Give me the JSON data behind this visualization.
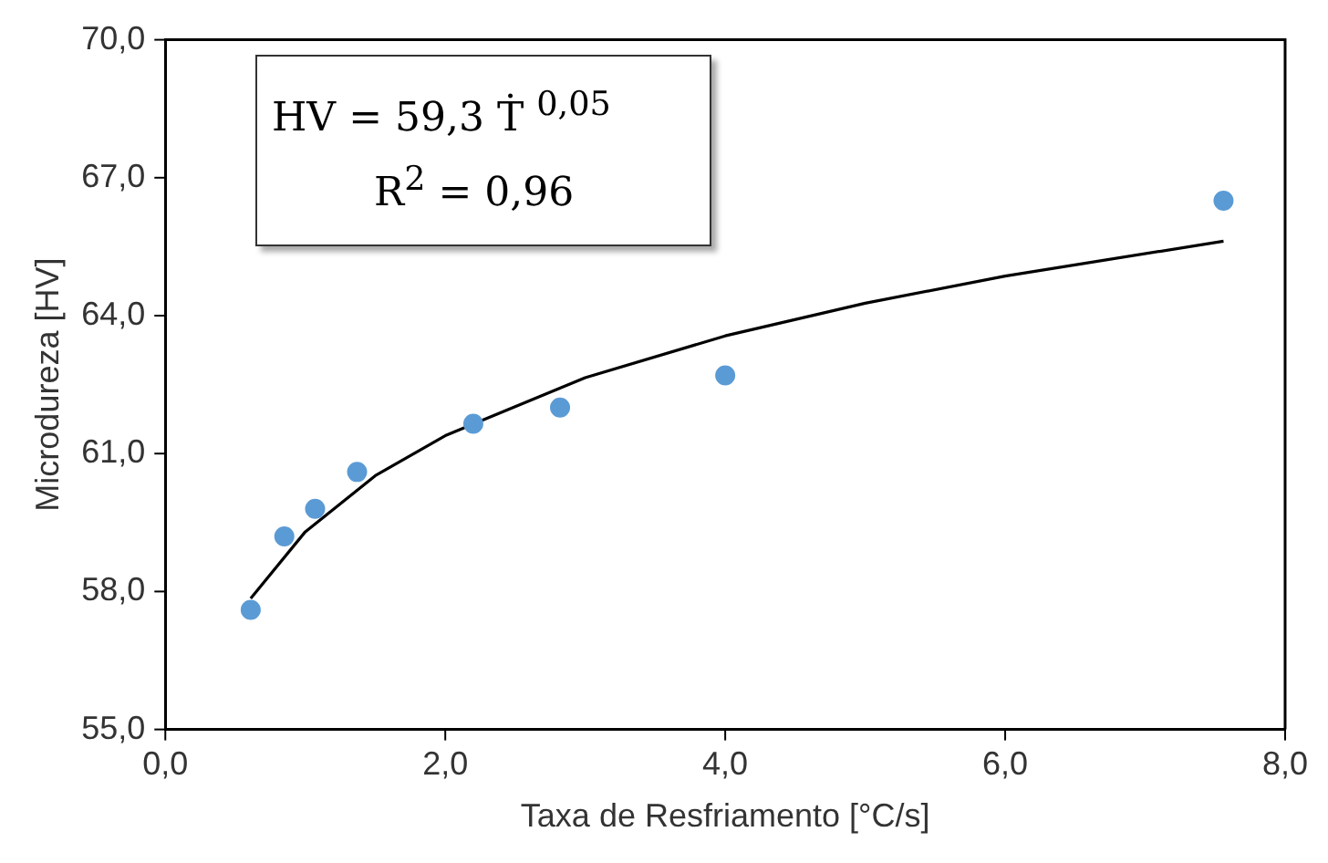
{
  "chart_data": {
    "type": "scatter",
    "xlabel": "Taxa de Resfriamento [°C/s]",
    "ylabel": "Microdureza [HV]",
    "annotations": [
      "HV = 59,3 Ṫ $^{0,05}$",
      "R$^{2}$ = 0,96"
    ],
    "xlim": [
      0,
      8
    ],
    "xticks": [
      {
        "value": 0,
        "label": "0,0"
      },
      {
        "value": 2,
        "label": "2,0"
      },
      {
        "value": 4,
        "label": "4,0"
      },
      {
        "value": 6,
        "label": "6,0"
      },
      {
        "value": 8,
        "label": "8,0"
      }
    ],
    "ylim": [
      55,
      70
    ],
    "yticks": [
      {
        "value": 55,
        "label": "55,0"
      },
      {
        "value": 58,
        "label": "58,0"
      },
      {
        "value": 61,
        "label": "61,0"
      },
      {
        "value": 64,
        "label": "64,0"
      },
      {
        "value": 67,
        "label": "67,0"
      },
      {
        "value": 70,
        "label": "70,0"
      }
    ],
    "grid": false,
    "legend": false,
    "marker": "circle",
    "series": [
      {
        "type": "scatter",
        "color": "#5b9bd5",
        "x": [
          0.61,
          0.85,
          1.07,
          1.37,
          2.2,
          2.82,
          4.0,
          7.56
        ],
        "values": [
          57.6,
          59.2,
          59.8,
          60.6,
          61.65,
          62.0,
          62.7,
          66.5
        ]
      },
      {
        "type": "line",
        "color": "#000000",
        "marker": "none",
        "line_style": "solid",
        "x": [
          0.61,
          1,
          1.5,
          2,
          3,
          4,
          5,
          6,
          7.56
        ],
        "values": [
          57.85,
          59.3,
          60.52,
          61.39,
          62.65,
          63.56,
          64.27,
          64.86,
          65.62
        ]
      }
    ]
  }
}
